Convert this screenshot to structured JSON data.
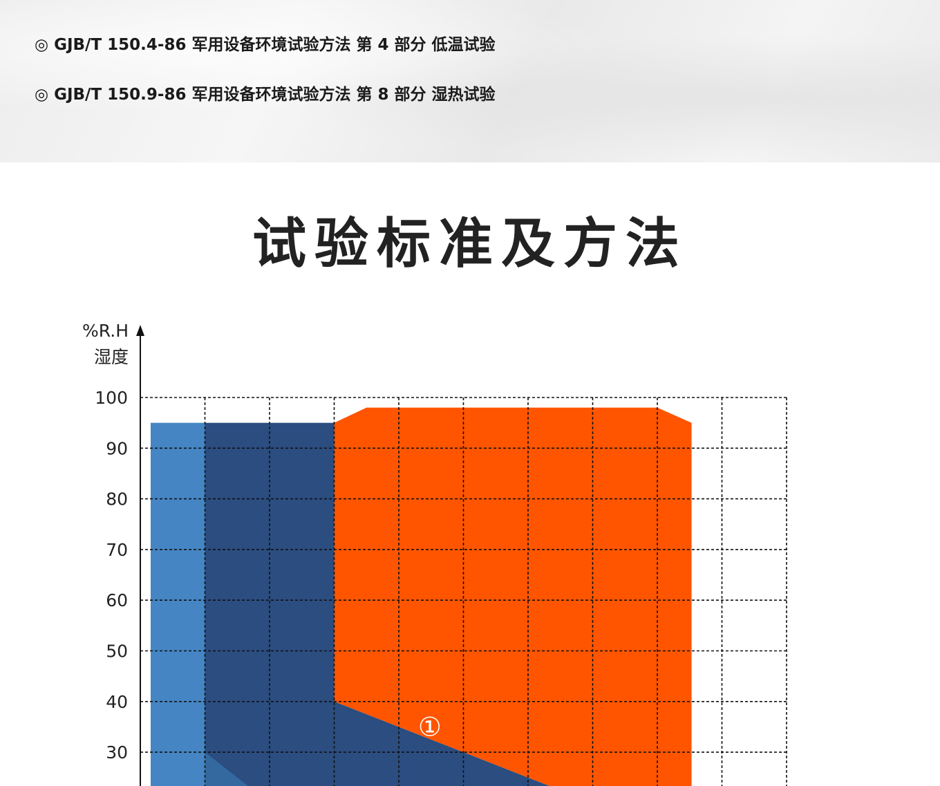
{
  "standards": [
    {
      "bullet": "◎",
      "text": "GJB/T 150.4-86 军用设备环境试验方法 第 4 部分 低温试验"
    },
    {
      "bullet": "◎",
      "text": "GJB/T 150.9-86 军用设备环境试验方法 第 8 部分 湿热试验"
    }
  ],
  "section_title": "试验标准及方法",
  "chart_data": {
    "type": "area",
    "ylabel_unit": "%R.H",
    "ylabel": "湿度",
    "yticks": [
      100,
      90,
      80,
      70,
      60,
      50,
      40,
      30
    ],
    "ylim": [
      20,
      100
    ],
    "grid": true,
    "grid_style": "dashed",
    "x_grid_columns": 10,
    "regions": [
      {
        "color": "#4585C3",
        "points": [
          [
            0.16,
            95
          ],
          [
            1,
            95
          ],
          [
            1,
            20
          ],
          [
            0.16,
            20
          ]
        ]
      },
      {
        "color": "#2B4D80",
        "points": [
          [
            1,
            95
          ],
          [
            3,
            95
          ],
          [
            3,
            40
          ],
          [
            7,
            20
          ],
          [
            1,
            20
          ]
        ]
      },
      {
        "color": "#33699E",
        "points": [
          [
            1,
            30
          ],
          [
            2,
            20
          ],
          [
            1,
            20
          ]
        ]
      },
      {
        "color": "#FF5500",
        "points": [
          [
            3,
            95
          ],
          [
            3.5,
            98
          ],
          [
            8,
            98
          ],
          [
            8.53,
            95
          ],
          [
            8.53,
            20
          ],
          [
            7,
            20
          ],
          [
            3,
            40
          ]
        ]
      }
    ],
    "annotations": [
      {
        "text": "①",
        "x": 4.48,
        "y": 35,
        "color": "#ffffff"
      }
    ]
  }
}
